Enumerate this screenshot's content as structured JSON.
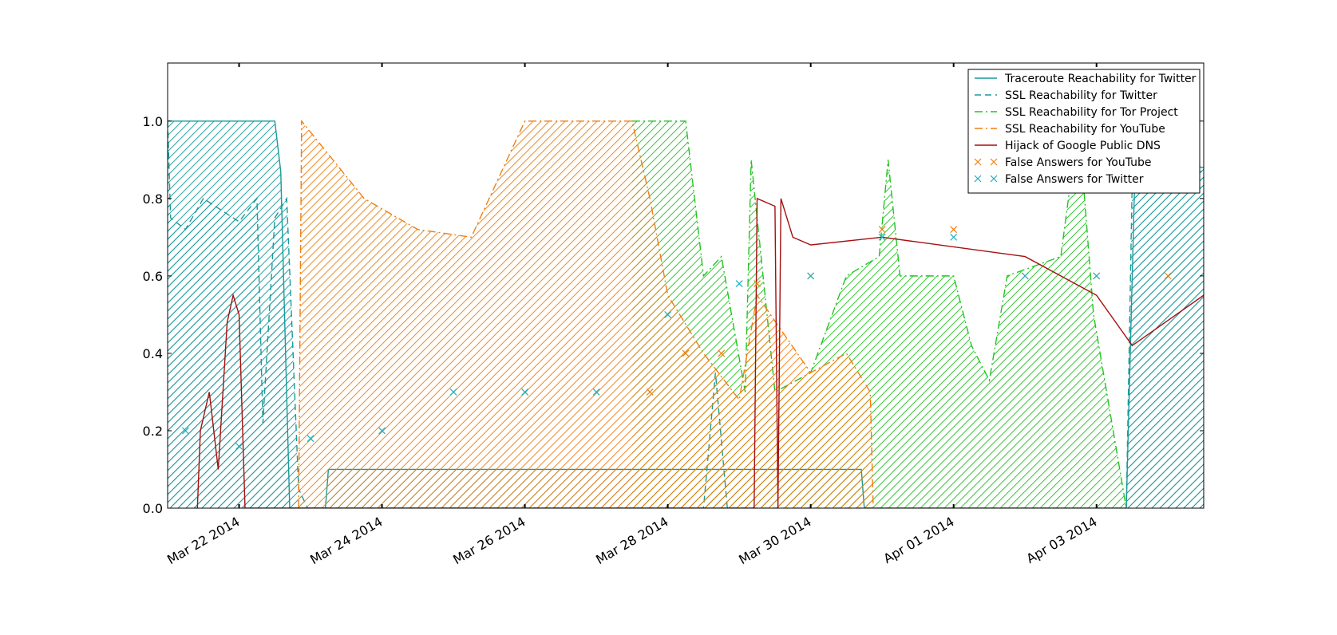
{
  "chart_data": {
    "type": "line",
    "x_axis": {
      "type": "date",
      "range": [
        "2014-03-21",
        "2014-04-04T12:00"
      ],
      "ticks": [
        {
          "date": "2014-03-22",
          "label": "Mar 22 2014"
        },
        {
          "date": "2014-03-24",
          "label": "Mar 24 2014"
        },
        {
          "date": "2014-03-26",
          "label": "Mar 26 2014"
        },
        {
          "date": "2014-03-28",
          "label": "Mar 28 2014"
        },
        {
          "date": "2014-03-30",
          "label": "Mar 30 2014"
        },
        {
          "date": "2014-04-01",
          "label": "Apr 01 2014"
        },
        {
          "date": "2014-04-03",
          "label": "Apr 03 2014"
        }
      ]
    },
    "y_axis": {
      "range": [
        0,
        1.15
      ],
      "ticks": [
        {
          "value": 0.0,
          "label": "0.0"
        },
        {
          "value": 0.2,
          "label": "0.2"
        },
        {
          "value": 0.4,
          "label": "0.4"
        },
        {
          "value": 0.6,
          "label": "0.6"
        },
        {
          "value": 0.8,
          "label": "0.8"
        },
        {
          "value": 1.0,
          "label": "1.0"
        }
      ]
    },
    "grid": false,
    "legend_position": "top-right",
    "series": [
      {
        "name": "Traceroute Reachability for Twitter",
        "style": "solid",
        "color": "#1a9a9a",
        "hatched": true,
        "points": [
          [
            "2014-03-21",
            1.0
          ],
          [
            "2014-03-22T12:00",
            1.0
          ],
          [
            "2014-03-22T14:00",
            0.87
          ],
          [
            "2014-03-22T17:00",
            0.0
          ],
          [
            "2014-03-23T05:00",
            0.0
          ],
          [
            "2014-03-23T06:00",
            0.1
          ],
          [
            "2014-03-26",
            0.1
          ],
          [
            "2014-03-29",
            0.1
          ],
          [
            "2014-03-30",
            0.1
          ],
          [
            "2014-03-30T17:00",
            0.1
          ],
          [
            "2014-03-30T18:00",
            0.0
          ],
          [
            "2014-04-03T10:00",
            0.0
          ],
          [
            "2014-04-03T13:00",
            0.9
          ],
          [
            "2014-04-04T12:00",
            0.88
          ]
        ]
      },
      {
        "name": "SSL Reachability for Twitter",
        "style": "dashed",
        "color": "#1a9a9a",
        "hatched": true,
        "points": [
          [
            "2014-03-21",
            1.0
          ],
          [
            "2014-03-21T01:00",
            0.75
          ],
          [
            "2014-03-21T06:00",
            0.72
          ],
          [
            "2014-03-21T12:00",
            0.8
          ],
          [
            "2014-03-22",
            0.74
          ],
          [
            "2014-03-22T06:00",
            0.8
          ],
          [
            "2014-03-22T08:00",
            0.22
          ],
          [
            "2014-03-22T12:00",
            0.75
          ],
          [
            "2014-03-22T16:00",
            0.8
          ],
          [
            "2014-03-22T20:00",
            0.05
          ],
          [
            "2014-03-22T23:00",
            0.0
          ],
          [
            "2014-03-28",
            0.0
          ],
          [
            "2014-03-28T12:00",
            0.0
          ],
          [
            "2014-03-28T16:00",
            0.35
          ],
          [
            "2014-03-28T20:00",
            0.0
          ],
          [
            "2014-03-31",
            0.0
          ],
          [
            "2014-04-01T04:00",
            0.0
          ],
          [
            "2014-04-02",
            0.0
          ],
          [
            "2014-04-03T10:00",
            0.0
          ],
          [
            "2014-04-03T12:00",
            0.85
          ],
          [
            "2014-04-04T12:00",
            0.87
          ]
        ]
      },
      {
        "name": "SSL Reachability for Tor Project",
        "style": "dashdot",
        "color": "#22c422",
        "hatched": true,
        "points": [
          [
            "2014-03-27T12:00",
            1.0
          ],
          [
            "2014-03-28T06:00",
            1.0
          ],
          [
            "2014-03-28T12:00",
            0.6
          ],
          [
            "2014-03-28T18:00",
            0.65
          ],
          [
            "2014-03-29T02:00",
            0.3
          ],
          [
            "2014-03-29T04:00",
            0.9
          ],
          [
            "2014-03-29T12:00",
            0.3
          ],
          [
            "2014-03-30",
            0.35
          ],
          [
            "2014-03-30T12:00",
            0.6
          ],
          [
            "2014-03-30T23:00",
            0.65
          ],
          [
            "2014-03-31T02:00",
            0.9
          ],
          [
            "2014-03-31T06:00",
            0.6
          ],
          [
            "2014-04-01",
            0.6
          ],
          [
            "2014-04-01T06:00",
            0.42
          ],
          [
            "2014-04-01T12:00",
            0.33
          ],
          [
            "2014-04-01T18:00",
            0.6
          ],
          [
            "2014-04-02T12:00",
            0.65
          ],
          [
            "2014-04-02T18:00",
            1.0
          ],
          [
            "2014-04-02T23:00",
            0.5
          ],
          [
            "2014-04-03T10:00",
            0.0
          ]
        ]
      },
      {
        "name": "SSL Reachability for YouTube",
        "style": "dashdot",
        "color": "#f07f10",
        "hatched": true,
        "points": [
          [
            "2014-03-22T20:00",
            0.0
          ],
          [
            "2014-03-22T21:00",
            1.0
          ],
          [
            "2014-03-23T18:00",
            0.8
          ],
          [
            "2014-03-24T12:00",
            0.72
          ],
          [
            "2014-03-25T06:00",
            0.7
          ],
          [
            "2014-03-26",
            1.0
          ],
          [
            "2014-03-27T12:00",
            1.0
          ],
          [
            "2014-03-27T18:00",
            0.8
          ],
          [
            "2014-03-28",
            0.55
          ],
          [
            "2014-03-28T12:00",
            0.4
          ],
          [
            "2014-03-29",
            0.28
          ],
          [
            "2014-03-29T06:00",
            0.55
          ],
          [
            "2014-03-30",
            0.35
          ],
          [
            "2014-03-30T12:00",
            0.4
          ],
          [
            "2014-03-30T20:00",
            0.3
          ],
          [
            "2014-03-30T21:00",
            0.0
          ]
        ]
      },
      {
        "name": "Hijack of Google Public DNS",
        "style": "solid",
        "color": "#a50f0f",
        "hatched": false,
        "points": [
          [
            "2014-03-21T10:00",
            0.0
          ],
          [
            "2014-03-21T11:00",
            0.2
          ],
          [
            "2014-03-21T14:00",
            0.3
          ],
          [
            "2014-03-21T17:00",
            0.1
          ],
          [
            "2014-03-21T20:00",
            0.48
          ],
          [
            "2014-03-21T22:00",
            0.55
          ],
          [
            "2014-03-22",
            0.5
          ],
          [
            "2014-03-22T02:00",
            0.0
          ],
          [
            "2014-03-29T05:00",
            0.0
          ],
          [
            "2014-03-29T06:00",
            0.8
          ],
          [
            "2014-03-29T12:00",
            0.78
          ],
          [
            "2014-03-29T13:00",
            0.0
          ],
          [
            "2014-03-29T14:00",
            0.8
          ],
          [
            "2014-03-29T18:00",
            0.7
          ],
          [
            "2014-03-30",
            0.68
          ],
          [
            "2014-03-31",
            0.7
          ],
          [
            "2014-04-02",
            0.65
          ],
          [
            "2014-04-03",
            0.55
          ],
          [
            "2014-04-03T12:00",
            0.42
          ],
          [
            "2014-04-04T12:00",
            0.55
          ]
        ]
      },
      {
        "name": "False Answers for YouTube",
        "style": "markers",
        "color": "#f07f10",
        "points": [
          [
            "2014-03-27T18:00",
            0.3
          ],
          [
            "2014-03-28T06:00",
            0.4
          ],
          [
            "2014-03-28T18:00",
            0.4
          ],
          [
            "2014-03-29T06:00",
            0.58
          ],
          [
            "2014-03-30",
            0.6
          ],
          [
            "2014-03-31",
            0.72
          ],
          [
            "2014-04-01",
            0.72
          ],
          [
            "2014-04-02",
            0.6
          ],
          [
            "2014-04-03",
            0.6
          ],
          [
            "2014-04-04",
            0.6
          ]
        ]
      },
      {
        "name": "False Answers for Twitter",
        "style": "markers",
        "color": "#1ab0c0",
        "points": [
          [
            "2014-03-21T06:00",
            0.2
          ],
          [
            "2014-03-22",
            0.16
          ],
          [
            "2014-03-23",
            0.18
          ],
          [
            "2014-03-24",
            0.2
          ],
          [
            "2014-03-25",
            0.3
          ],
          [
            "2014-03-26",
            0.3
          ],
          [
            "2014-03-27",
            0.3
          ],
          [
            "2014-03-28",
            0.5
          ],
          [
            "2014-03-29",
            0.58
          ],
          [
            "2014-03-30",
            0.6
          ],
          [
            "2014-03-31",
            0.7
          ],
          [
            "2014-04-01",
            0.7
          ],
          [
            "2014-04-02",
            0.6
          ],
          [
            "2014-04-03",
            0.6
          ]
        ]
      }
    ]
  }
}
